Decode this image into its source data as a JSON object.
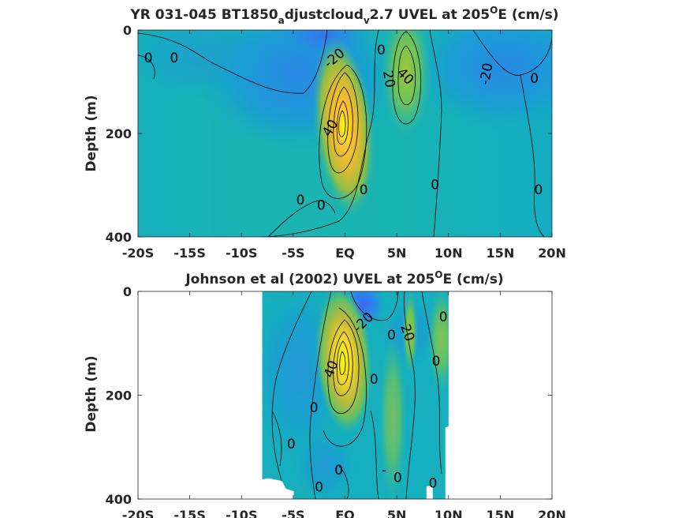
{
  "chart_data": [
    {
      "type": "heatmap",
      "panel": "top",
      "title_main": "YR 031-045 BT1850",
      "title_sub1": "a",
      "title_mid": "djustcloud",
      "title_sub2": "v",
      "title_end": "2.7 UVEL at 205",
      "title_sup": "O",
      "title_tail": "E (cm/s)",
      "ylabel": "Depth (m)",
      "xlim": [
        -20,
        20
      ],
      "ylim": [
        0,
        400
      ],
      "y_reversed": true,
      "xticks": [
        -20,
        -15,
        -10,
        -5,
        0,
        5,
        10,
        15,
        20
      ],
      "xticklabels": [
        "-20S",
        "-15S",
        "-10S",
        "-5S",
        "EQ",
        "5N",
        "10N",
        "15N",
        "20N"
      ],
      "yticks": [
        0,
        200,
        400
      ],
      "yticklabels": [
        "0",
        "200",
        "400"
      ],
      "colormap": "parula",
      "data_extent": [
        -20,
        20
      ],
      "features": [
        {
          "kind": "core-max",
          "lat": 0,
          "depth": 160,
          "value": 100
        },
        {
          "kind": "jet-max",
          "lat": 6,
          "depth": 80,
          "value": 45
        },
        {
          "kind": "jet-min",
          "lat": -4,
          "depth": 40,
          "value": -30
        },
        {
          "kind": "jet-min",
          "lat": 13,
          "depth": 50,
          "value": -25
        }
      ],
      "contour_labels": [
        {
          "text": "0",
          "lat": -19,
          "depth": 55,
          "rot": 0
        },
        {
          "text": "0",
          "lat": -16.5,
          "depth": 55,
          "rot": 0
        },
        {
          "text": "-20",
          "lat": -1,
          "depth": 55,
          "rot": -40
        },
        {
          "text": "0",
          "lat": 3.5,
          "depth": 40,
          "rot": 0
        },
        {
          "text": "20",
          "lat": 4.2,
          "depth": 95,
          "rot": 80
        },
        {
          "text": "40",
          "lat": 5.8,
          "depth": 90,
          "rot": 45
        },
        {
          "text": "-20",
          "lat": 13.7,
          "depth": 85,
          "rot": -80
        },
        {
          "text": "0",
          "lat": 18.3,
          "depth": 95,
          "rot": 0
        },
        {
          "text": "40",
          "lat": -1.4,
          "depth": 190,
          "rot": -60
        },
        {
          "text": "0",
          "lat": -4.3,
          "depth": 330,
          "rot": 0
        },
        {
          "text": "0",
          "lat": -2.3,
          "depth": 340,
          "rot": 0
        },
        {
          "text": "0",
          "lat": 1.8,
          "depth": 310,
          "rot": 0
        },
        {
          "text": "0",
          "lat": 8.7,
          "depth": 300,
          "rot": 0
        },
        {
          "text": "0",
          "lat": 18.7,
          "depth": 310,
          "rot": 0
        }
      ]
    },
    {
      "type": "heatmap",
      "panel": "bottom",
      "title_main": "Johnson et al (2002) UVEL at 205",
      "title_sup": "O",
      "title_tail": "E (cm/s)",
      "ylabel": "Depth (m)",
      "xlim": [
        -20,
        20
      ],
      "ylim": [
        0,
        400
      ],
      "y_reversed": true,
      "xticks": [
        -20,
        -15,
        -10,
        -5,
        0,
        5,
        10,
        15,
        20
      ],
      "xticklabels": [
        "-20S",
        "-15S",
        "-10S",
        "-5S",
        "EQ",
        "5N",
        "10N",
        "15N",
        "20N"
      ],
      "yticks": [
        0,
        200,
        400
      ],
      "yticklabels": [
        "0",
        "200",
        "400"
      ],
      "colormap": "parula",
      "data_extent": [
        -8,
        10
      ],
      "features": [
        {
          "kind": "core-max",
          "lat": 0,
          "depth": 135,
          "value": 100
        },
        {
          "kind": "jet-max",
          "lat": 6,
          "depth": 80,
          "value": 35
        },
        {
          "kind": "jet-min",
          "lat": 2,
          "depth": 25,
          "value": -40
        }
      ],
      "contour_labels": [
        {
          "text": "-20",
          "lat": 1.8,
          "depth": 60,
          "rot": -45
        },
        {
          "text": "0",
          "lat": 4.5,
          "depth": 85,
          "rot": 0
        },
        {
          "text": "20",
          "lat": 6,
          "depth": 80,
          "rot": 70
        },
        {
          "text": "0",
          "lat": 9.5,
          "depth": 50,
          "rot": 0
        },
        {
          "text": "0",
          "lat": 8.8,
          "depth": 135,
          "rot": 0
        },
        {
          "text": "40",
          "lat": -1.3,
          "depth": 150,
          "rot": -70
        },
        {
          "text": "0",
          "lat": 2.8,
          "depth": 170,
          "rot": 0
        },
        {
          "text": "0",
          "lat": -3,
          "depth": 225,
          "rot": 0
        },
        {
          "text": "0",
          "lat": -5.2,
          "depth": 295,
          "rot": 0
        },
        {
          "text": "0",
          "lat": -0.6,
          "depth": 345,
          "rot": 0
        },
        {
          "text": "-",
          "lat": 3.8,
          "depth": 345,
          "rot": 0
        },
        {
          "text": "0",
          "lat": 5.1,
          "depth": 360,
          "rot": 0
        },
        {
          "text": "0",
          "lat": 8.5,
          "depth": 370,
          "rot": 0
        },
        {
          "text": "0",
          "lat": -2.5,
          "depth": 378,
          "rot": 0
        }
      ]
    }
  ]
}
